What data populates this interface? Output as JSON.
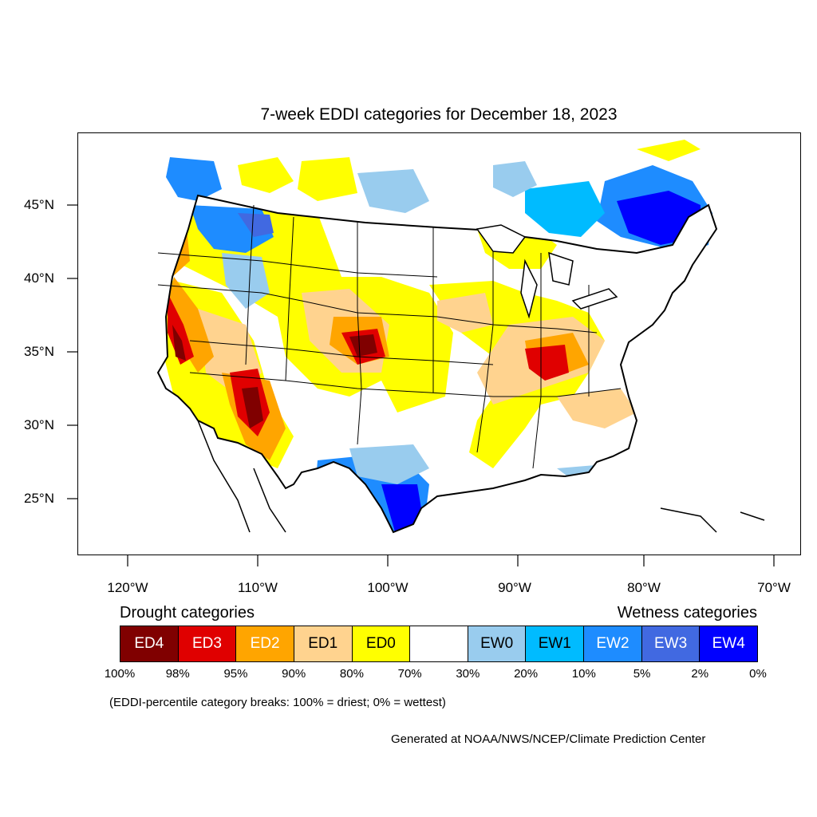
{
  "title": "7-week EDDI categories for December 18, 2023",
  "lat_labels": [
    "45°N",
    "40°N",
    "35°N",
    "30°N",
    "25°N"
  ],
  "lon_labels": [
    "120°W",
    "110°W",
    "100°W",
    "90°W",
    "80°W",
    "70°W"
  ],
  "legend": {
    "drought_heading": "Drought categories",
    "wetness_heading": "Wetness categories",
    "categories": [
      {
        "label": "ED4",
        "color": "#800000",
        "text_color": "#ffffff"
      },
      {
        "label": "ED3",
        "color": "#e00000",
        "text_color": "#ffffff"
      },
      {
        "label": "ED2",
        "color": "#ffa500",
        "text_color": "#ffffff"
      },
      {
        "label": "ED1",
        "color": "#ffd38f",
        "text_color": "#000000"
      },
      {
        "label": "ED0",
        "color": "#ffff00",
        "text_color": "#000000"
      },
      {
        "label": "",
        "color": "#ffffff",
        "text_color": "#000000"
      },
      {
        "label": "EW0",
        "color": "#99ccee",
        "text_color": "#000000"
      },
      {
        "label": "EW1",
        "color": "#00bbff",
        "text_color": "#000000"
      },
      {
        "label": "EW2",
        "color": "#1e8cff",
        "text_color": "#ffffff"
      },
      {
        "label": "EW3",
        "color": "#4169e1",
        "text_color": "#ffffff"
      },
      {
        "label": "EW4",
        "color": "#0000ff",
        "text_color": "#ffffff"
      }
    ],
    "breaks": [
      "100%",
      "98%",
      "95%",
      "90%",
      "80%",
      "70%",
      "30%",
      "20%",
      "10%",
      "5%",
      "2%",
      "0%"
    ]
  },
  "note": "(EDDI-percentile category breaks: 100% = driest; 0% = wettest)",
  "credit": "Generated at NOAA/NWS/NCEP/Climate Prediction Center"
}
